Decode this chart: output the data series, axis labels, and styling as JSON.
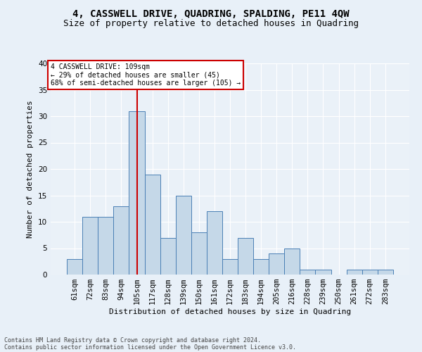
{
  "title": "4, CASSWELL DRIVE, QUADRING, SPALDING, PE11 4QW",
  "subtitle": "Size of property relative to detached houses in Quadring",
  "xlabel": "Distribution of detached houses by size in Quadring",
  "ylabel": "Number of detached properties",
  "categories": [
    "61sqm",
    "72sqm",
    "83sqm",
    "94sqm",
    "105sqm",
    "117sqm",
    "128sqm",
    "139sqm",
    "150sqm",
    "161sqm",
    "172sqm",
    "183sqm",
    "194sqm",
    "205sqm",
    "216sqm",
    "228sqm",
    "239sqm",
    "250sqm",
    "261sqm",
    "272sqm",
    "283sqm"
  ],
  "bar_heights": [
    3,
    11,
    11,
    13,
    31,
    19,
    7,
    15,
    8,
    12,
    3,
    7,
    3,
    4,
    5,
    1,
    1,
    0,
    1,
    1,
    1
  ],
  "bar_color": "#c5d8e8",
  "bar_edge_color": "#4a7fb5",
  "ylim": [
    0,
    40
  ],
  "yticks": [
    0,
    5,
    10,
    15,
    20,
    25,
    30,
    35,
    40
  ],
  "vline_x": 4,
  "vline_color": "#cc0000",
  "annotation_title": "4 CASSWELL DRIVE: 109sqm",
  "annotation_line1": "← 29% of detached houses are smaller (45)",
  "annotation_line2": "68% of semi-detached houses are larger (105) →",
  "annotation_box_color": "#ffffff",
  "annotation_box_edge": "#cc0000",
  "footer_line1": "Contains HM Land Registry data © Crown copyright and database right 2024.",
  "footer_line2": "Contains public sector information licensed under the Open Government Licence v3.0.",
  "background_color": "#e8f0f8",
  "plot_bg_color": "#eaf1f8",
  "grid_color": "#ffffff",
  "title_fontsize": 10,
  "subtitle_fontsize": 9,
  "label_fontsize": 8,
  "tick_fontsize": 7.5,
  "annotation_fontsize": 7,
  "footer_fontsize": 6
}
